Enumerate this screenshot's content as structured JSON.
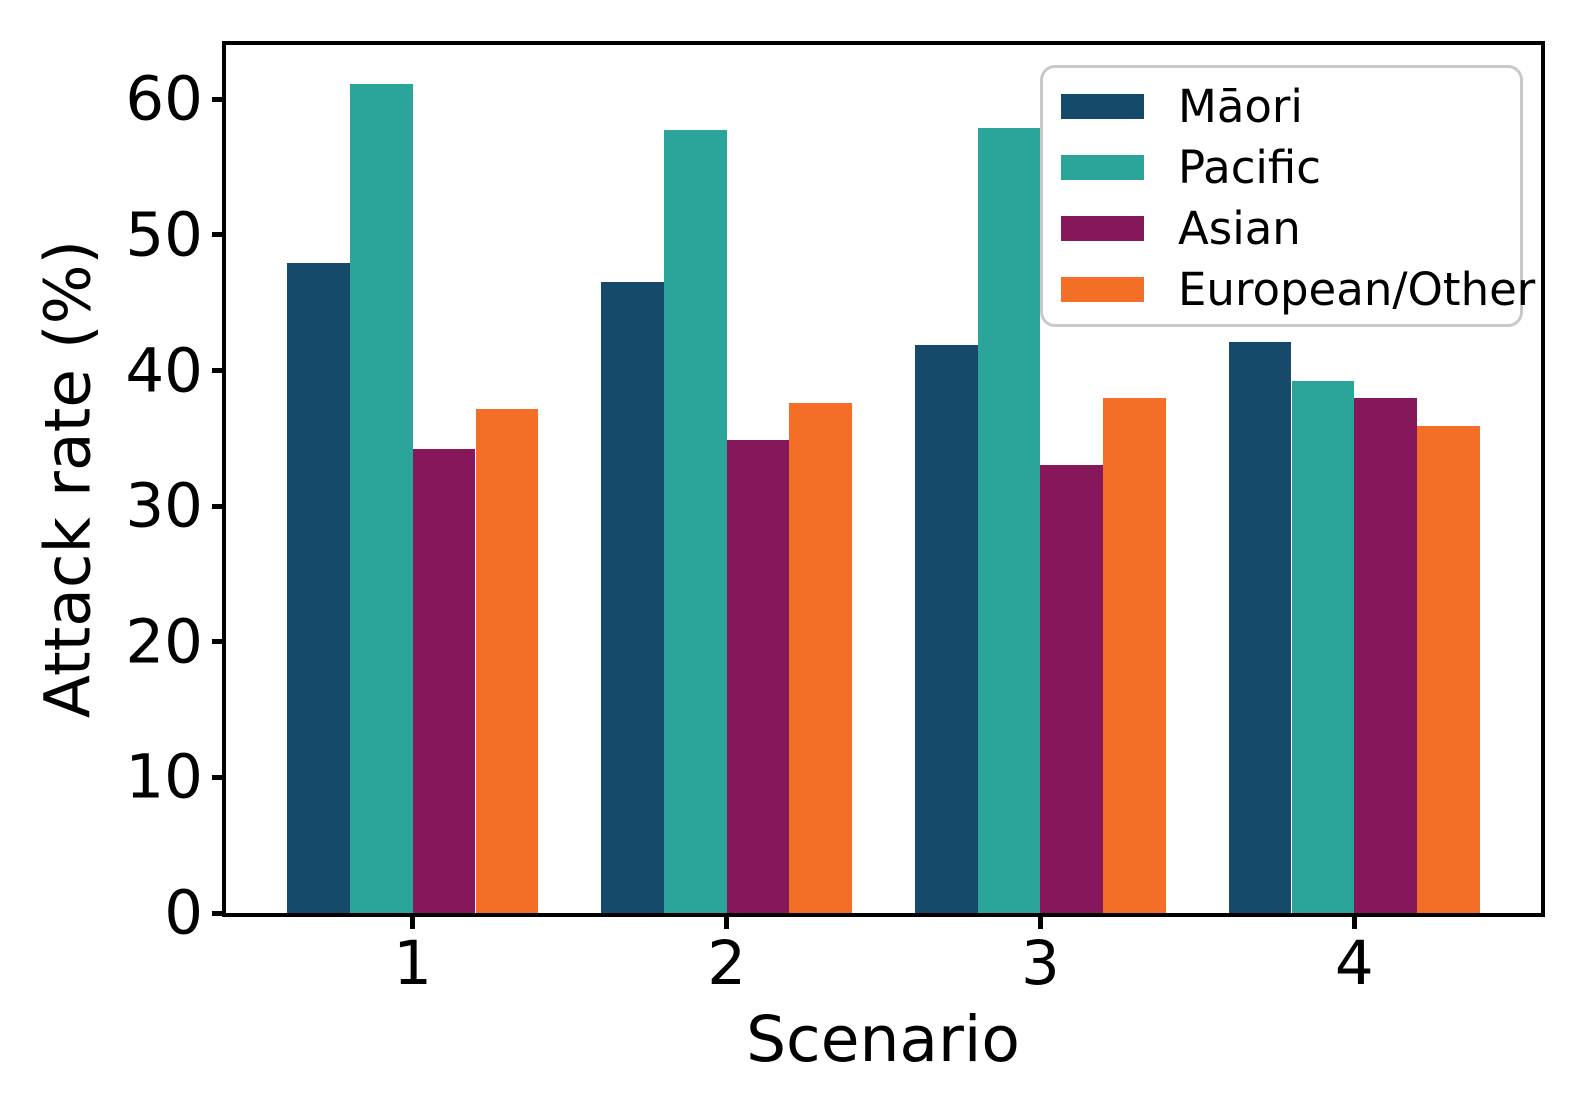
{
  "figure": {
    "background": "#ffffff",
    "frame_color": "#000000",
    "tick_color": "#000000",
    "text_color": "#000000",
    "legend_border_color": "#c9c9c9"
  },
  "chart_data": {
    "type": "bar",
    "title": "",
    "xlabel": "Scenario",
    "ylabel": "Attack rate (%)",
    "categories": [
      "1",
      "2",
      "3",
      "4"
    ],
    "series": [
      {
        "name": "Māori",
        "color": "#164A6B",
        "values": [
          47.9,
          46.5,
          41.9,
          42.1
        ]
      },
      {
        "name": "Pacific",
        "color": "#2BA49A",
        "values": [
          61.1,
          57.7,
          57.9,
          39.2
        ]
      },
      {
        "name": "Asian",
        "color": "#85175A",
        "values": [
          34.2,
          34.9,
          33.0,
          38.0
        ]
      },
      {
        "name": "European/Other",
        "color": "#F36E26",
        "values": [
          37.2,
          37.6,
          38.0,
          35.9
        ]
      }
    ],
    "ylim": [
      0,
      64
    ],
    "yticks": [
      0,
      10,
      20,
      30,
      40,
      50,
      60
    ],
    "bar_width": 0.2,
    "group_positions": [
      1,
      2,
      3,
      4
    ],
    "xlim": [
      0.405,
      4.595
    ],
    "grid": false,
    "legend_position": "upper right"
  }
}
